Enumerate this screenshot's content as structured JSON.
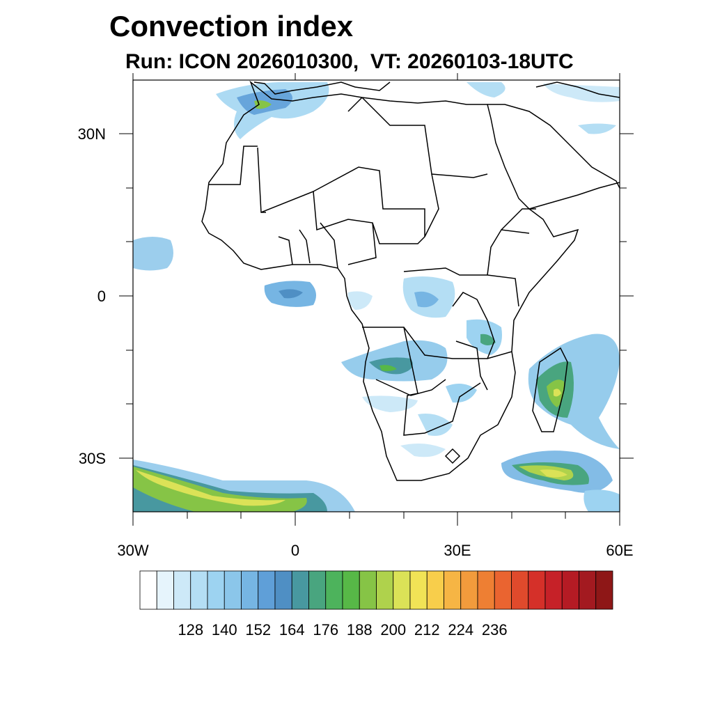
{
  "title": "Convection index",
  "subtitle": "Run: ICON 2026010300,  VT: 20260103-18UTC",
  "map": {
    "region": "Africa",
    "lon_range": [
      -30,
      60
    ],
    "lat_range": [
      -40,
      40
    ],
    "lat_labels": [
      "30N",
      "0",
      "30S"
    ],
    "lon_labels": [
      "30W",
      "0",
      "30E",
      "60E"
    ]
  },
  "colorbar": {
    "labels": [
      "128",
      "140",
      "152",
      "164",
      "176",
      "188",
      "200",
      "212",
      "224",
      "236"
    ],
    "colors": [
      "#ffffff",
      "#e6f4fc",
      "#cde9f8",
      "#b4def4",
      "#9dd3f1",
      "#8bc6ea",
      "#76b5e3",
      "#5f9fd8",
      "#4f8fc4",
      "#4898a0",
      "#49a57f",
      "#4db35c",
      "#57b847",
      "#86c446",
      "#afd24c",
      "#dbe257",
      "#f1e356",
      "#f8ce4b",
      "#f6b544",
      "#f29b3c",
      "#ee7f33",
      "#ea6430",
      "#e04a2c",
      "#d53029",
      "#c62128",
      "#b51b24",
      "#a31a20",
      "#8e1717"
    ]
  }
}
